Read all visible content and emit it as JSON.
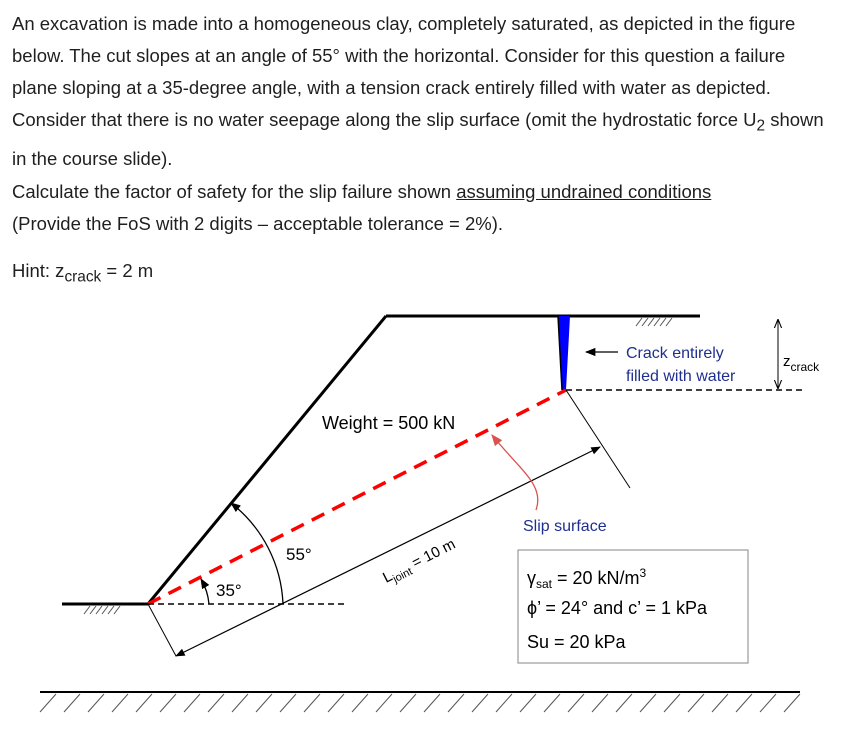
{
  "question": {
    "paragraph1": "An excavation is made into a homogeneous clay, completely saturated, as depicted in the figure below. The cut slopes at an angle of 55° with the horizontal. Consider for this question a failure plane sloping at a 35-degree angle, with a tension crack entirely filled with water as depicted. Consider that there is no water seepage along the slip surface (omit the hydrostatic force U",
    "paragraph1_sub": "2",
    "paragraph1_end": " shown in the course slide).",
    "paragraph2_start": "Calculate the factor of safety for the slip failure shown ",
    "paragraph2_underline": "assuming undrained conditions",
    "paragraph2_end": "(Provide the FoS with 2 digits – acceptable tolerance = 2%).",
    "hint_label": "Hint: z",
    "hint_sub": "crack",
    "hint_value": " = 2 m"
  },
  "diagram": {
    "weight_label": "Weight = 500 kN",
    "crack_label_line1": "Crack entirely",
    "crack_label_line2": "filled with water",
    "zcrack_main": "z",
    "zcrack_sub": "crack",
    "slip_surface_label": "Slip surface",
    "ljoint_main": "L",
    "ljoint_sub": "joint",
    "ljoint_value": " = 10 m",
    "angle_slope": "55°",
    "angle_failure": "35°",
    "gamma_symbol": "γ",
    "gamma_sub": "sat",
    "gamma_value": " = 20 kN/m",
    "gamma_sup": "3",
    "phi_line": "ϕ’ = 24° and c’ = 1 kPa",
    "su_line": "Su = 20 kPa",
    "colors": {
      "slip_line": "#ff0000",
      "crack_fill": "#0000ff",
      "arrow_slip": "#d9534f",
      "box_border": "#999999"
    }
  }
}
